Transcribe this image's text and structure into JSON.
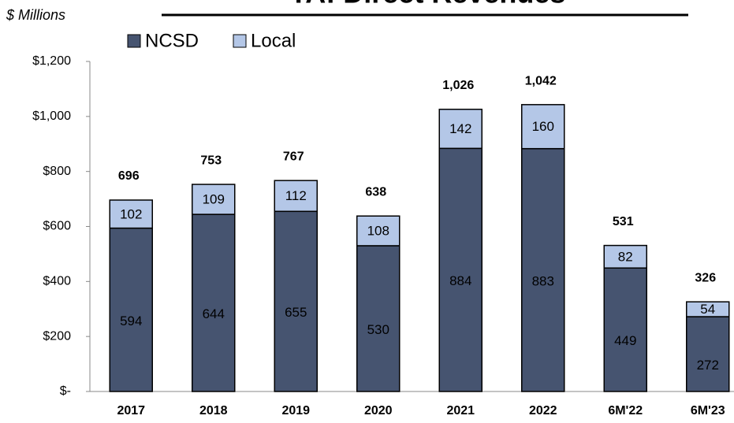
{
  "chart_data": {
    "type": "stacked_bar",
    "title": "YA: Direct Revenues",
    "y_label": "$ Millions",
    "categories": [
      "2017",
      "2018",
      "2019",
      "2020",
      "2021",
      "2022",
      "6M'22",
      "6M'23"
    ],
    "series": [
      {
        "name": "NCSD",
        "color": "#465470",
        "values": [
          594,
          644,
          655,
          530,
          884,
          883,
          449,
          272
        ]
      },
      {
        "name": "Local",
        "color": "#b4c7e7",
        "values": [
          102,
          109,
          112,
          108,
          142,
          160,
          82,
          54
        ]
      }
    ],
    "totals": {
      "values": [
        696,
        753,
        767,
        638,
        1026,
        1042,
        531,
        326
      ],
      "value_labels": [
        "696",
        "753",
        "767",
        "638",
        "1,026",
        "1,042",
        "531",
        "326"
      ]
    },
    "ylim": [
      0,
      1200
    ],
    "yticks": [
      {
        "value": 0,
        "label": "$-"
      },
      {
        "value": 200,
        "label": "$200"
      },
      {
        "value": 400,
        "label": "$400"
      },
      {
        "value": 600,
        "label": "$600"
      },
      {
        "value": 800,
        "label": "$800"
      },
      {
        "value": 1000,
        "label": "$1,000"
      },
      {
        "value": 1200,
        "label": "$1,200"
      }
    ],
    "legend": "top-left"
  }
}
